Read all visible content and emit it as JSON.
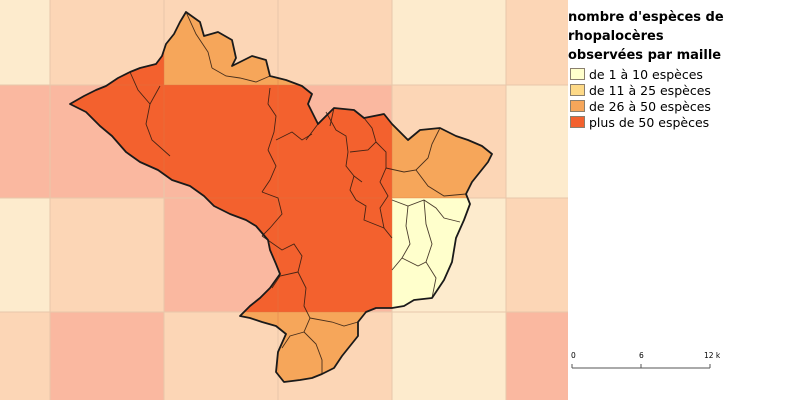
{
  "legend": {
    "title_lines": [
      "nombre d'espèces de",
      "rhopalocères",
      "observées par maille"
    ],
    "items": [
      {
        "label": "de 1 à 10 espèces",
        "color": "#ffffcc"
      },
      {
        "label": "de 11 à 25 espèces",
        "color": "#fdd987"
      },
      {
        "label": "de 26 à 50 espèces",
        "color": "#f6a65a"
      },
      {
        "label": "plus de 50 espèces",
        "color": "#f3612e"
      }
    ]
  },
  "scalebar": {
    "ticks": [
      "0",
      "6",
      "12 km"
    ]
  },
  "map": {
    "grid_colors": {
      "lightest": "#fdebcd",
      "light": "#fcd6b6",
      "medium": "#fab8a0",
      "outer_band": "#fce0c3"
    },
    "border_color": "#1a1a1a"
  }
}
